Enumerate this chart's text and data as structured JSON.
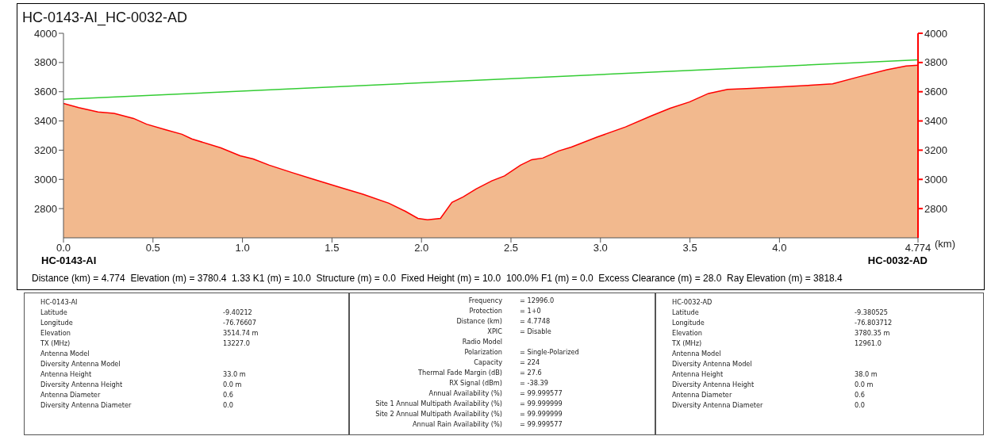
{
  "chart_data": {
    "type": "area",
    "title": "HC-0143-AI_HC-0032-AD",
    "xlabel": "(km)",
    "xlim": [
      0,
      4.774
    ],
    "xticks": [
      {
        "value": 0,
        "label": "0.0"
      },
      {
        "value": 0.5,
        "label": "0.5"
      },
      {
        "value": 1,
        "label": "1.0"
      },
      {
        "value": 1.5,
        "label": "1.5"
      },
      {
        "value": 2,
        "label": "2.0"
      },
      {
        "value": 2.5,
        "label": "2.5"
      },
      {
        "value": 3,
        "label": "3.0"
      },
      {
        "value": 3.5,
        "label": "3.5"
      },
      {
        "value": 4,
        "label": "4.0"
      },
      4.774
    ],
    "ylim": [
      2600,
      4000
    ],
    "yticks": [
      2800,
      3000,
      3200,
      3400,
      3600,
      3800,
      4000
    ],
    "y2lim": [
      2600,
      4000
    ],
    "y2ticks": [
      2800,
      3000,
      3200,
      3400,
      3600,
      3800,
      4000
    ],
    "grid": false,
    "legend": false,
    "series": [
      {
        "color": "#f2b98e",
        "x": [
          0,
          0.085,
          0.193,
          0.283,
          0.392,
          0.464,
          0.572,
          0.662,
          0.717,
          0.879,
          0.987,
          1.06,
          1.15,
          1.276,
          1.384,
          1.547,
          1.673,
          1.818,
          1.908,
          1.98,
          2.034,
          2.106,
          2.17,
          2.233,
          2.305,
          2.393,
          2.464,
          2.553,
          2.616,
          2.678,
          2.767,
          2.838,
          2.98,
          3.14,
          3.283,
          3.39,
          3.497,
          3.603,
          3.71,
          3.817,
          3.995,
          4.173,
          4.297,
          4.44,
          4.6,
          4.707,
          4.774
        ],
        "values": [
          3520,
          3491,
          3461,
          3452,
          3417,
          3378,
          3339,
          3309,
          3277,
          3216,
          3162,
          3140,
          3097,
          3047,
          3006,
          2945,
          2898,
          2837,
          2783,
          2733,
          2724,
          2733,
          2843,
          2880,
          2934,
          2990,
          3024,
          3097,
          3135,
          3146,
          3195,
          3221,
          3289,
          3359,
          3434,
          3487,
          3530,
          3588,
          3616,
          3622,
          3633,
          3644,
          3654,
          3701,
          3750,
          3776,
          3782
        ]
      },
      {
        "type": "line",
        "color": "#33cc33",
        "x": [
          0,
          4.774
        ],
        "values": [
          3548,
          3818
        ]
      }
    ],
    "annotations": [
      "HC-0143-AI",
      "HC-0032-AD",
      "Distance (km) = 4.774  Elevation (m) = 3780.4  1.33 K1 (m) = 10.0  Structure (m) = 0.0  Fixed Height (m) = 10.0  100.0% F1 (m) = 0.0  Excess Clearance (m) = 28.0  Ray Elevation (m) = 3818.4",
      "HC-0143-AI",
      "Latitude",
      "-9.40212",
      "Longitude",
      "-76.76607",
      "Elevation",
      "3514.74 m",
      "TX (MHz)",
      "13227.0",
      "Antenna Model",
      "Diversity Antenna Model",
      "Antenna Height",
      "33.0 m",
      "Diversity Antenna Height",
      "0.0 m",
      "Antenna Diameter",
      "0.6",
      "Diversity Antenna Diameter",
      "0.0",
      "Frequency",
      "= 12996.0",
      "Protection",
      "= 1+0",
      "Distance (km)",
      "= 4.7748",
      "XPIC",
      "= Disable",
      "Radio Model",
      "Polarization",
      "= Single-Polarized",
      "Capacity",
      "= 224",
      "Thermal Fade Margin (dB)",
      "= 27.6",
      "RX Signal (dBm)",
      "= -38.39",
      "Annual Availability (%)",
      "= 99.999577",
      "Site 1 Annual Multipath Availability (%)",
      "= 99.999999",
      "Site 2 Annual Multipath Availability (%)",
      "= 99.999999",
      "Annual Rain Availability (%)",
      "= 99.999577",
      "HC-0032-AD",
      "Latitude",
      "-9.380525",
      "Longitude",
      "-76.803712",
      "Elevation",
      "3780.35 m",
      "TX (MHz)",
      "12961.0",
      "Antenna Model",
      "Diversity Antenna Model",
      "Antenna Height",
      "38.0 m",
      "Diversity Antenna Height",
      "0.0 m",
      "Antenna Diameter",
      "0.6",
      "Diversity Antenna Diameter",
      "0.0"
    ]
  }
}
